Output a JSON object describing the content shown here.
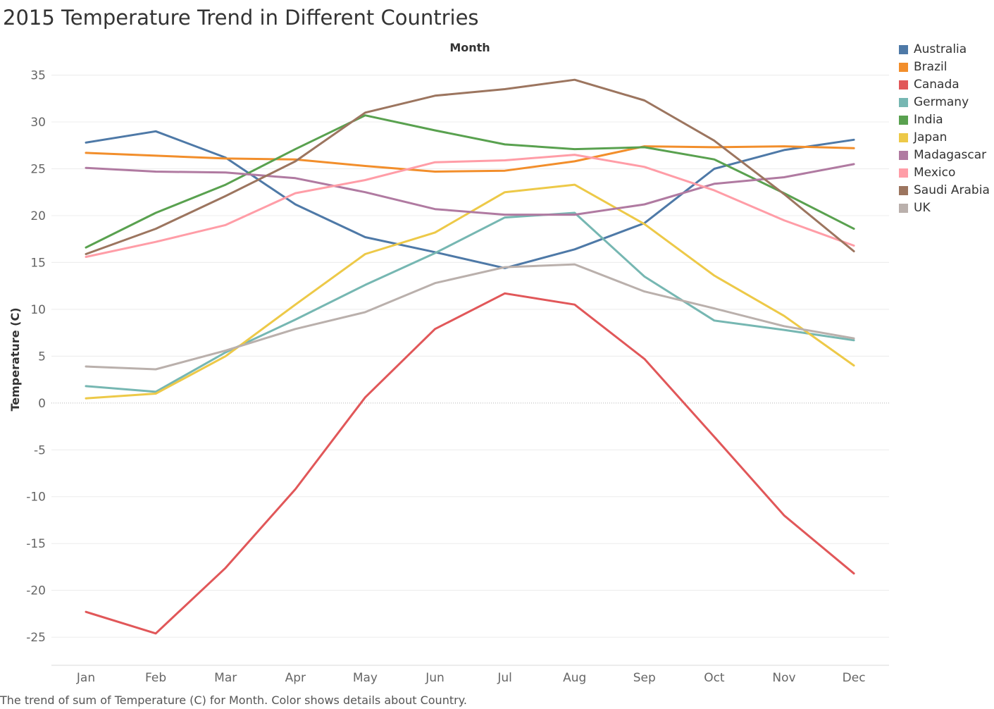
{
  "title": "2015 Temperature Trend in Different Countries",
  "caption": "The trend of sum of Temperature (C) for Month.  Color shows details about Country.",
  "chart_data": {
    "type": "line",
    "title": "2015 Temperature Trend in Different Countries",
    "xlabel": "Month",
    "ylabel": "Temperature (C)",
    "x_axis_position": "top",
    "categories": [
      "Jan",
      "Feb",
      "Mar",
      "Apr",
      "May",
      "Jun",
      "Jul",
      "Aug",
      "Sep",
      "Oct",
      "Nov",
      "Dec"
    ],
    "ylim": [
      -28,
      37
    ],
    "yticks": [
      35,
      30,
      25,
      20,
      15,
      10,
      5,
      0,
      -5,
      -10,
      -15,
      -20,
      -25
    ],
    "grid": true,
    "zero_line": "dotted",
    "legend_position": "right",
    "series": [
      {
        "name": "Australia",
        "color": "#4e79a7",
        "values": [
          27.8,
          29.0,
          26.2,
          21.2,
          17.7,
          16.1,
          14.4,
          16.4,
          19.2,
          25.0,
          27.0,
          28.1
        ]
      },
      {
        "name": "Brazil",
        "color": "#f28e2b",
        "values": [
          26.7,
          26.4,
          26.1,
          26.0,
          25.3,
          24.7,
          24.8,
          25.8,
          27.4,
          27.3,
          27.4,
          27.2
        ]
      },
      {
        "name": "Canada",
        "color": "#e15759",
        "values": [
          -22.3,
          -24.6,
          -17.6,
          -9.2,
          0.6,
          7.9,
          11.7,
          10.5,
          4.7,
          -3.6,
          -12.0,
          -18.2
        ]
      },
      {
        "name": "Germany",
        "color": "#76b7b2",
        "values": [
          1.8,
          1.2,
          5.4,
          8.9,
          12.6,
          16.0,
          19.8,
          20.3,
          13.5,
          8.8,
          7.8,
          6.7
        ]
      },
      {
        "name": "India",
        "color": "#59a14f",
        "values": [
          16.6,
          20.3,
          23.3,
          27.1,
          30.7,
          29.1,
          27.6,
          27.1,
          27.3,
          26.0,
          22.4,
          18.6
        ]
      },
      {
        "name": "Japan",
        "color": "#edc948",
        "values": [
          0.5,
          1.0,
          5.0,
          10.5,
          15.9,
          18.2,
          22.5,
          23.3,
          19.1,
          13.6,
          9.3,
          4.0
        ]
      },
      {
        "name": "Madagascar",
        "color": "#b07aa1",
        "values": [
          25.1,
          24.7,
          24.6,
          24.0,
          22.5,
          20.7,
          20.1,
          20.1,
          21.2,
          23.4,
          24.1,
          25.5
        ]
      },
      {
        "name": "Mexico",
        "color": "#ff9da7",
        "values": [
          15.6,
          17.2,
          19.0,
          22.4,
          23.8,
          25.7,
          25.9,
          26.5,
          25.2,
          22.7,
          19.5,
          16.8
        ]
      },
      {
        "name": "Saudi Arabia",
        "color": "#9c755f",
        "values": [
          15.9,
          18.6,
          22.1,
          25.8,
          31.0,
          32.8,
          33.5,
          34.5,
          32.3,
          28.0,
          22.3,
          16.2
        ]
      },
      {
        "name": "UK",
        "color": "#bab0ac",
        "values": [
          3.9,
          3.6,
          5.6,
          7.9,
          9.7,
          12.8,
          14.5,
          14.8,
          11.9,
          10.1,
          8.2,
          6.9
        ]
      }
    ]
  }
}
